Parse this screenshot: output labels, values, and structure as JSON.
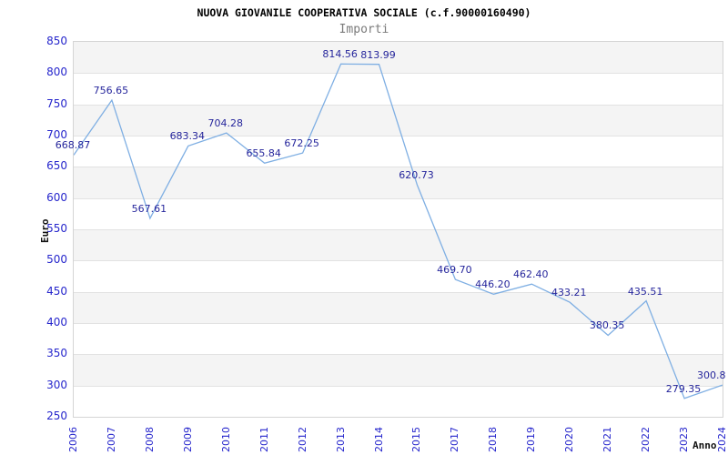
{
  "header": {
    "title": "NUOVA GIOVANILE COOPERATIVA SOCIALE (c.f.90000160490)",
    "subtitle": "Importi"
  },
  "chart_data": {
    "type": "line",
    "title": "NUOVA GIOVANILE COOPERATIVA SOCIALE (c.f.90000160490)",
    "subtitle": "Importi",
    "xlabel": "Anno",
    "ylabel": "Euro",
    "categories": [
      "2006",
      "2007",
      "2008",
      "2009",
      "2010",
      "2011",
      "2012",
      "2013",
      "2014",
      "2015",
      "2017",
      "2018",
      "2019",
      "2020",
      "2021",
      "2022",
      "2023",
      "2024"
    ],
    "series": [
      {
        "name": "Importi",
        "values": [
          668.87,
          756.65,
          567.61,
          683.34,
          704.28,
          655.84,
          672.25,
          814.56,
          813.99,
          620.73,
          469.7,
          446.2,
          462.4,
          433.21,
          380.35,
          435.51,
          279.35,
          300.8
        ]
      }
    ],
    "point_labels": [
      "668.87",
      "756.65",
      "567.61",
      "683.34",
      "704.28",
      "655.84",
      "672.25",
      "814.56",
      "813.99",
      "620.73",
      "469.70",
      "446.20",
      "462.40",
      "433.21",
      "380.35",
      "435.51",
      "279.35",
      "300.8"
    ],
    "ylim": [
      250,
      850
    ],
    "yticks": [
      850,
      800,
      750,
      700,
      650,
      600,
      550,
      500,
      450,
      400,
      350,
      300,
      250
    ],
    "grid": "horizontal alternating bands every 50 units, gray band from 850-800 downward",
    "legend_position": "none",
    "markers": "none"
  },
  "colors": {
    "line": "#7fafe3",
    "band_gray": "#f4f4f4",
    "band_white": "#ffffff",
    "gridline": "#e2e2e2",
    "plot_border": "#d4d4d4",
    "axis_tick_label": "#2626cc",
    "point_label": "#26269c",
    "title": "#000000",
    "subtitle": "#7a7a7a",
    "axis_title": "#111111"
  }
}
